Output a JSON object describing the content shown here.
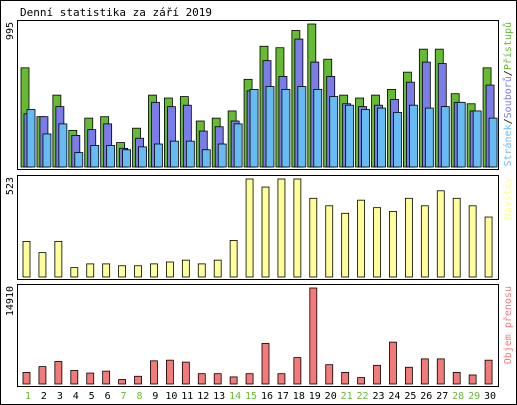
{
  "chart_data": {
    "type": "bar",
    "title": "Denní statistika za září 2019",
    "days": [
      1,
      2,
      3,
      4,
      5,
      6,
      7,
      8,
      9,
      10,
      11,
      12,
      13,
      14,
      15,
      16,
      17,
      18,
      19,
      20,
      21,
      22,
      23,
      24,
      25,
      26,
      27,
      28,
      29,
      30
    ],
    "weekend_days": [
      1,
      7,
      8,
      14,
      15,
      21,
      22,
      28,
      29
    ],
    "colors": {
      "hits": "#66bb33",
      "files": "#7b7bea",
      "pages": "#66bbf2",
      "visits": "#ffff99",
      "kbytes": "#f47a7a",
      "weekend_label": "#66bb33",
      "frame": "#000000"
    },
    "panels": [
      {
        "id": "traffic",
        "max_label": "995",
        "ymax": 995,
        "legend": {
          "hits": "Přístupů",
          "files": "Souborů",
          "pages": "Stránek",
          "sep": "/"
        },
        "series": [
          {
            "key": "hits",
            "values": [
              690,
              350,
              500,
              255,
              340,
              350,
              170,
              270,
              500,
              480,
              490,
              320,
              340,
              390,
              610,
              840,
              830,
              950,
              995,
              750,
              500,
              480,
              500,
              540,
              660,
              820,
              820,
              510,
              440,
              690
            ]
          },
          {
            "key": "files",
            "values": [
              370,
              350,
              420,
              220,
              260,
              300,
              130,
              200,
              450,
              420,
              430,
              250,
              280,
              320,
              530,
              740,
              630,
              890,
              730,
              630,
              440,
              420,
              430,
              470,
              590,
              730,
              720,
              450,
              390,
              570
            ]
          },
          {
            "key": "pages",
            "values": [
              400,
              230,
              300,
              100,
              150,
              150,
              120,
              140,
              160,
              180,
              180,
              120,
              160,
              300,
              540,
              560,
              540,
              560,
              540,
              490,
              430,
              400,
              410,
              380,
              430,
              410,
              420,
              450,
              390,
              340
            ]
          }
        ]
      },
      {
        "id": "visits",
        "max_label": "523",
        "ymax": 523,
        "legend": {
          "visits": "Návštěv"
        },
        "series": [
          {
            "key": "visits",
            "values": [
              190,
              130,
              190,
              50,
              70,
              70,
              60,
              60,
              70,
              80,
              90,
              70,
              90,
              195,
              523,
              480,
              523,
              523,
              420,
              380,
              340,
              410,
              370,
              350,
              420,
              380,
              460,
              420,
              380,
              320
            ]
          }
        ]
      },
      {
        "id": "kbytes",
        "max_label": "14910",
        "ymax": 14910,
        "legend": {
          "kbytes": "Objem přenosu"
        },
        "series": [
          {
            "key": "kbytes",
            "values": [
              1800,
              2700,
              3500,
              2100,
              1700,
              2000,
              700,
              1200,
              3600,
              3700,
              3400,
              1600,
              1600,
              1100,
              1600,
              6300,
              1600,
              4100,
              14910,
              3000,
              1800,
              1000,
              2900,
              6500,
              2600,
              3900,
              3900,
              1800,
              1400,
              3700
            ]
          }
        ]
      }
    ]
  }
}
